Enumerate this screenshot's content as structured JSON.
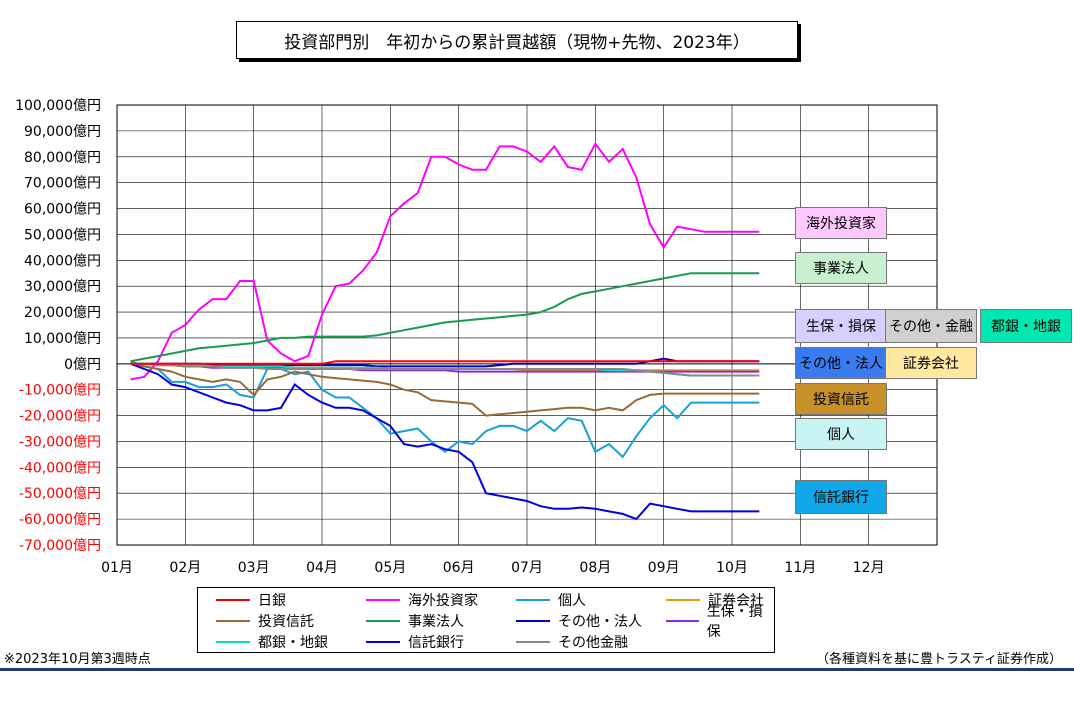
{
  "chart_data": {
    "type": "line",
    "title": "投資部門別　年初からの累計買越額（現物+先物、2023年）",
    "ylim": [
      -70000,
      100000
    ],
    "y_ticks": [
      "100,000億円",
      "90,000億円",
      "80,000億円",
      "70,000億円",
      "60,000億円",
      "50,000億円",
      "40,000億円",
      "30,000億円",
      "20,000億円",
      "10,000億円",
      "0億円",
      "-10,000億円",
      "-20,000億円",
      "-30,000億円",
      "-40,000億円",
      "-50,000億円",
      "-60,000億円",
      "-70,000億円"
    ],
    "x_ticks": [
      "01月",
      "02月",
      "03月",
      "04月",
      "05月",
      "06月",
      "07月",
      "08月",
      "09月",
      "10月",
      "11月",
      "12月"
    ],
    "xlim": [
      0,
      12
    ],
    "grid": true,
    "legend_position": "bottom",
    "x": [
      0.2,
      0.4,
      0.6,
      0.8,
      1.0,
      1.2,
      1.4,
      1.6,
      1.8,
      2.0,
      2.2,
      2.4,
      2.6,
      2.8,
      3.0,
      3.2,
      3.4,
      3.6,
      3.8,
      4.0,
      4.2,
      4.4,
      4.6,
      4.8,
      5.0,
      5.2,
      5.4,
      5.6,
      5.8,
      6.0,
      6.2,
      6.4,
      6.6,
      6.8,
      7.0,
      7.2,
      7.4,
      7.6,
      7.8,
      8.0,
      8.2,
      8.4,
      8.6,
      8.8,
      9.0,
      9.2,
      9.4,
      9.6,
      9.8,
      10.0
    ],
    "series": [
      {
        "name": "日銀",
        "color": "#ff0000",
        "values": [
          0,
          0,
          0,
          0,
          0,
          0,
          0,
          0,
          0,
          0,
          0,
          0,
          0,
          0,
          0,
          1000,
          1000,
          1000,
          1000,
          1000,
          1000,
          1000,
          1000,
          1000,
          1000,
          1000,
          1000,
          1000,
          1000,
          1000,
          1000,
          1000,
          1000,
          1000,
          1000,
          1000,
          1000,
          1000,
          1000,
          1000,
          1000,
          1000,
          1000,
          1000,
          1000,
          1000,
          1000,
          1000,
          1000,
          1000
        ]
      },
      {
        "name": "海外投資家",
        "color": "#ff00ff",
        "values": [
          -6000,
          -5000,
          1000,
          12000,
          15000,
          21000,
          25000,
          25000,
          32000,
          32000,
          9000,
          4000,
          1000,
          3000,
          19000,
          30000,
          31000,
          36000,
          43000,
          57000,
          62000,
          66000,
          80000,
          80000,
          77000,
          75000,
          75000,
          84000,
          84000,
          82000,
          78000,
          84000,
          76000,
          75000,
          85000,
          78000,
          83000,
          72000,
          54000,
          45000,
          53000,
          52000,
          51000,
          51000,
          51000,
          51000,
          51000,
          51000,
          51000,
          51000
        ]
      },
      {
        "name": "個人",
        "color": "#1aa0d8",
        "values": [
          1000,
          -1000,
          -2000,
          -7000,
          -7000,
          -9000,
          -9000,
          -8000,
          -12000,
          -13000,
          -2000,
          -2000,
          -4000,
          -3000,
          -10000,
          -13000,
          -13000,
          -17000,
          -21000,
          -27000,
          -26000,
          -25000,
          -30000,
          -34000,
          -30000,
          -31000,
          -26000,
          -24000,
          -24000,
          -26000,
          -22000,
          -26000,
          -21000,
          -22000,
          -34000,
          -31000,
          -36000,
          -28000,
          -21000,
          -16000,
          -21000,
          -15000,
          -15000,
          -15000,
          -15000,
          -15000,
          -15000,
          -15000,
          -15000,
          -15000
        ]
      },
      {
        "name": "証券会社",
        "color": "#e6a000",
        "values": [
          0,
          0,
          -500,
          -500,
          -1000,
          -1000,
          -1000,
          -1000,
          -1000,
          -1000,
          -1500,
          -1500,
          -1500,
          -1500,
          -1500,
          -1500,
          -1500,
          -2000,
          -2000,
          -2000,
          -2000,
          -2000,
          -2000,
          -2000,
          -2000,
          -2000,
          -2000,
          -2000,
          -2000,
          -2500,
          -2500,
          -2500,
          -2500,
          -2500,
          -2500,
          -2500,
          -2500,
          -2500,
          -2500,
          -2500,
          -2500,
          -2500,
          -2500,
          -2500,
          -2500,
          -2500,
          -2500,
          -2500,
          -2500,
          -2500
        ]
      },
      {
        "name": "投資信託",
        "color": "#9a6a36",
        "values": [
          0,
          -1000,
          -2000,
          -3000,
          -5000,
          -6000,
          -7000,
          -6000,
          -7000,
          -12000,
          -6000,
          -5000,
          -3000,
          -4000,
          -5000,
          -5500,
          -6000,
          -6500,
          -7000,
          -8000,
          -10000,
          -11000,
          -14000,
          -14500,
          -15000,
          -15500,
          -20000,
          -19500,
          -19000,
          -18500,
          -18000,
          -17500,
          -17000,
          -17000,
          -18000,
          -17000,
          -18000,
          -14000,
          -12000,
          -11500,
          -11500,
          -11500,
          -11500,
          -11500,
          -11500,
          -11500,
          -11500,
          -11500,
          -11500,
          -11500
        ]
      },
      {
        "name": "事業法人",
        "color": "#1a9a50",
        "values": [
          1000,
          2000,
          3000,
          4000,
          5000,
          6000,
          6500,
          7000,
          7500,
          8000,
          9000,
          10000,
          10000,
          10500,
          10500,
          10500,
          10500,
          10500,
          11000,
          12000,
          13000,
          14000,
          15000,
          16000,
          16500,
          17000,
          17500,
          18000,
          18500,
          19000,
          20000,
          22000,
          25000,
          27000,
          28000,
          29000,
          30000,
          31000,
          32000,
          33000,
          34000,
          35000,
          35000,
          35000,
          35000,
          35000,
          35000,
          35000,
          35000,
          35000
        ]
      },
      {
        "name": "その他・法人",
        "color": "#0000cc",
        "values": [
          0,
          0,
          0,
          0,
          0,
          0,
          -500,
          -500,
          -500,
          -500,
          -500,
          -500,
          -500,
          -500,
          -500,
          -500,
          -500,
          -500,
          -1000,
          -1000,
          -1000,
          -1000,
          -1000,
          -1000,
          -1000,
          -1000,
          -1000,
          -500,
          0,
          0,
          0,
          0,
          0,
          0,
          0,
          0,
          0,
          0,
          1000,
          2000,
          1000,
          1000,
          1000,
          1000,
          1000,
          1000,
          1000,
          1000,
          1000,
          1000
        ]
      },
      {
        "name": "生保・損保",
        "color": "#8a2be2",
        "values": [
          0,
          0,
          -500,
          -500,
          -1000,
          -1000,
          -1500,
          -1500,
          -1500,
          -1500,
          -1500,
          -1500,
          -2000,
          -2000,
          -2000,
          -2000,
          -2000,
          -2500,
          -2500,
          -2500,
          -2500,
          -2500,
          -2500,
          -2500,
          -3000,
          -3000,
          -3000,
          -3000,
          -3000,
          -3000,
          -3000,
          -3000,
          -3000,
          -3000,
          -3000,
          -3000,
          -3000,
          -3000,
          -3000,
          -3000,
          -3000,
          -3000,
          -3000,
          -3000,
          -3000,
          -3000,
          -3000,
          -3000,
          -3000,
          -3000
        ]
      },
      {
        "name": "都銀・地銀",
        "color": "#00e0c0",
        "values": [
          0,
          0,
          0,
          -500,
          -500,
          -500,
          -1000,
          -1000,
          -1000,
          -1000,
          -1000,
          -1000,
          -1500,
          -1500,
          -1500,
          -1500,
          -1500,
          -1500,
          -1500,
          -2000,
          -2000,
          -2000,
          -2000,
          -2000,
          -2000,
          -2000,
          -2000,
          -2000,
          -2000,
          -2000,
          -2000,
          -2000,
          -2000,
          -2000,
          -2000,
          -2500,
          -2500,
          -2500,
          -3000,
          -3500,
          -4000,
          -4500,
          -4500,
          -4500,
          -4500,
          -4500,
          -4500,
          -4500,
          -4500,
          -4500
        ]
      },
      {
        "name": "信託銀行",
        "color": "#0000e6",
        "values": [
          0,
          -2000,
          -4000,
          -8000,
          -9000,
          -11000,
          -13000,
          -15000,
          -16000,
          -18000,
          -18000,
          -17000,
          -8000,
          -12000,
          -15000,
          -17000,
          -17000,
          -18000,
          -21000,
          -24000,
          -31000,
          -32000,
          -31000,
          -33000,
          -34000,
          -38000,
          -50000,
          -51000,
          -52000,
          -53000,
          -55000,
          -56000,
          -56000,
          -55500,
          -56000,
          -57000,
          -58000,
          -60000,
          -54000,
          -55000,
          -56000,
          -57000,
          -57000,
          -57000,
          -57000,
          -57000,
          -57000,
          -57000,
          -57000,
          -57000
        ]
      },
      {
        "name": "その他金融",
        "color": "#888888",
        "values": [
          0,
          0,
          -500,
          -500,
          -1000,
          -1000,
          -1000,
          -1500,
          -1500,
          -1500,
          -2000,
          -2000,
          -2000,
          -2000,
          -2000,
          -2000,
          -2000,
          -2000,
          -2000,
          -2000,
          -2000,
          -2000,
          -2000,
          -2000,
          -2000,
          -2000,
          -2000,
          -2000,
          -2000,
          -2000,
          -2000,
          -2000,
          -2000,
          -2000,
          -2000,
          -2000,
          -2000,
          -2500,
          -3000,
          -3500,
          -4000,
          -4500,
          -4500,
          -4500,
          -4500,
          -4500,
          -4500,
          -4500,
          -4500,
          -4500
        ]
      }
    ],
    "end_labels": [
      {
        "text": "海外投資家",
        "bg": "#ffc8ff"
      },
      {
        "text": "事業法人",
        "bg": "#c8f0d0"
      },
      {
        "text": "生保・損保",
        "bg": "#d6d0ff"
      },
      {
        "text": "その他・金融",
        "bg": "#d0d0d0"
      },
      {
        "text": "都銀・地銀",
        "bg": "#00e8b0"
      },
      {
        "text": "その他・法人",
        "bg": "#3a7cf0"
      },
      {
        "text": "証券会社",
        "bg": "#ffe8a0"
      },
      {
        "text": "投資信託",
        "bg": "#c89028"
      },
      {
        "text": "個人",
        "bg": "#c8f4f4"
      },
      {
        "text": "信託銀行",
        "bg": "#10a8e8"
      }
    ]
  },
  "footnote_left": "※2023年10月第3週時点",
  "footnote_right": "（各種資料を基に豊トラスティ証券作成）"
}
